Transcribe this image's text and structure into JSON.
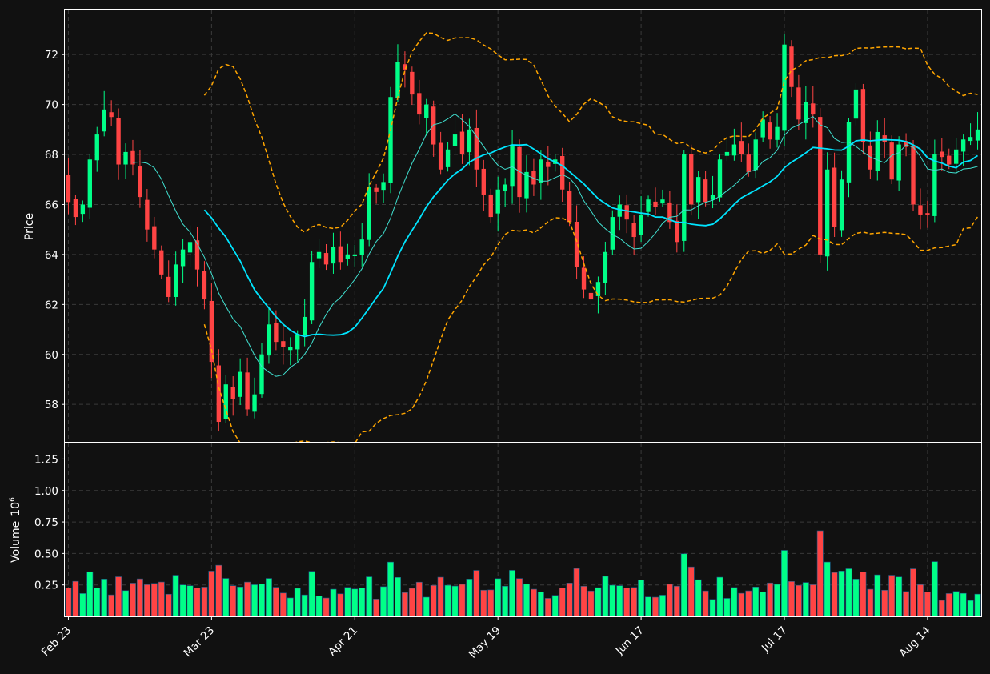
{
  "chart_data": {
    "type": "candlestick",
    "panels": [
      "price",
      "volume"
    ],
    "ylabel_price": "Price",
    "ylabel_volume": "Volume",
    "volume_exponent_label": "10",
    "volume_exponent_power": "6",
    "ylim_price": [
      56.5,
      73.8
    ],
    "ylim_volume": [
      0,
      1.38
    ],
    "price_ticks": [
      "58",
      "60",
      "62",
      "64",
      "66",
      "68",
      "70",
      "72"
    ],
    "volume_ticks": [
      "0.25",
      "0.50",
      "0.75",
      "1.00",
      "1.25"
    ],
    "x_ticks": [
      {
        "label": "Feb 23",
        "index": 0
      },
      {
        "label": "Mar 23",
        "index": 20
      },
      {
        "label": "Apr 21",
        "index": 40
      },
      {
        "label": "May 19",
        "index": 60
      },
      {
        "label": "Jun 17",
        "index": 80
      },
      {
        "label": "Jul 17",
        "index": 100
      },
      {
        "label": "Aug 14",
        "index": 120
      }
    ],
    "colors": {
      "up": "#00ff88",
      "down": "#ff4444",
      "ma_short": "#40e0d0",
      "ma_long": "#00e5ff",
      "bollinger": "#ffa500",
      "grid": "#3a3a3a",
      "background": "#111111"
    },
    "grid": true,
    "close": [
      66.1,
      65.5,
      66.0,
      67.8,
      68.8,
      69.8,
      69.5,
      67.6,
      68.1,
      67.6,
      66.3,
      65.0,
      64.2,
      63.2,
      62.3,
      63.6,
      64.2,
      64.5,
      63.4,
      62.2,
      59.7,
      57.3,
      58.8,
      58.2,
      59.3,
      57.8,
      58.4,
      60.0,
      61.2,
      60.5,
      60.3,
      60.3,
      60.8,
      61.5,
      63.7,
      64.1,
      63.6,
      64.3,
      63.7,
      64.0,
      64.0,
      64.6,
      66.7,
      66.5,
      66.9,
      70.3,
      71.7,
      71.4,
      70.4,
      69.6,
      70.0,
      68.4,
      67.4,
      68.2,
      68.8,
      68.0,
      69.0,
      67.4,
      66.4,
      65.5,
      66.6,
      66.8,
      68.4,
      66.3,
      67.3,
      66.8,
      67.8,
      67.5,
      67.8,
      66.6,
      65.3,
      63.5,
      62.6,
      62.2,
      62.9,
      64.1,
      65.5,
      66.0,
      65.4,
      64.7,
      65.6,
      66.2,
      65.9,
      66.2,
      65.3,
      64.5,
      68.0,
      66.0,
      67.1,
      66.1,
      66.4,
      67.8,
      68.1,
      68.4,
      68.0,
      67.3,
      68.6,
      69.4,
      68.6,
      69.1,
      72.4,
      70.7,
      69.4,
      70.1,
      69.6,
      64.0,
      67.4,
      65.1,
      67.0,
      69.3,
      70.6,
      68.5,
      67.4,
      68.9,
      68.5,
      67.0,
      68.4,
      68.3,
      66.0,
      65.6,
      65.6,
      68.0,
      67.9,
      67.6,
      68.2,
      68.6,
      68.7,
      69.0
    ]
  }
}
